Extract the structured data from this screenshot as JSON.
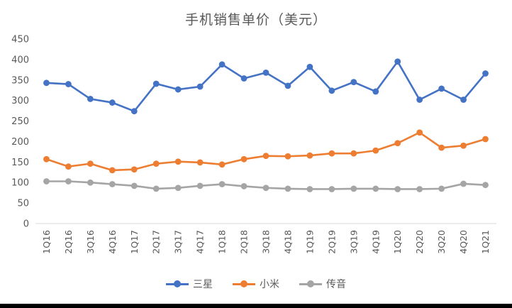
{
  "title": "手机销售单价（美元）",
  "chart_data": {
    "type": "line",
    "title": "手机销售单价（美元）",
    "categories": [
      "1Q16",
      "2Q16",
      "3Q16",
      "4Q16",
      "1Q17",
      "2Q17",
      "3Q17",
      "4Q17",
      "1Q18",
      "2Q18",
      "3Q18",
      "4Q18",
      "1Q19",
      "2Q19",
      "3Q19",
      "4Q19",
      "1Q20",
      "2Q20",
      "3Q20",
      "4Q20",
      "1Q21"
    ],
    "series": [
      {
        "name": "三星",
        "color": "#4472C4",
        "values": [
          343,
          340,
          304,
          295,
          274,
          341,
          327,
          334,
          388,
          354,
          368,
          336,
          382,
          324,
          345,
          322,
          395,
          302,
          329,
          302,
          366
        ]
      },
      {
        "name": "小米",
        "color": "#ED7D31",
        "values": [
          157,
          139,
          146,
          130,
          132,
          146,
          151,
          149,
          144,
          157,
          165,
          164,
          166,
          171,
          171,
          178,
          196,
          222,
          185,
          190,
          206
        ]
      },
      {
        "name": "传音",
        "color": "#A5A5A5",
        "values": [
          103,
          103,
          100,
          96,
          92,
          85,
          87,
          92,
          96,
          91,
          87,
          85,
          84,
          84,
          85,
          85,
          84,
          84,
          85,
          97,
          94
        ]
      }
    ],
    "xlabel": "",
    "ylabel": "",
    "ylim": [
      0,
      450
    ],
    "ytick_step": 50,
    "grid": false,
    "legend_position": "bottom",
    "axis_text_color": "#595959",
    "axis_line_color": "#D9D9D9"
  }
}
